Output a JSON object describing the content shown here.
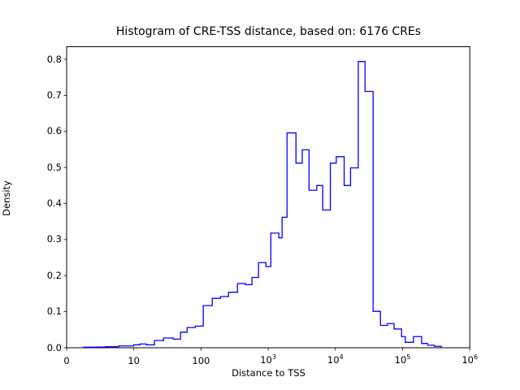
{
  "figure": {
    "background": "#ffffff"
  },
  "chart_data": {
    "type": "histogram_step",
    "title": "Histogram of CRE-TSS distance, based on: 6176 CREs",
    "xlabel": "Distance to TSS",
    "ylabel": "Density",
    "sample_count": 6176,
    "line_color": "#0000ff",
    "axis_color": "#000000",
    "x_scale": "symlog",
    "x_linthresh": 10,
    "xlim": [
      0,
      1000000
    ],
    "ylim": [
      0,
      0.835
    ],
    "grid": false,
    "legend": null,
    "xtick_values": [
      0,
      10,
      100,
      1000,
      10000,
      100000,
      1000000
    ],
    "xtick_labels": [
      "0",
      "10",
      "100",
      "10^3",
      "10^4",
      "10^5",
      "10^6"
    ],
    "ytick_values": [
      0.0,
      0.1,
      0.2,
      0.3,
      0.4,
      0.5,
      0.6,
      0.7,
      0.8
    ],
    "ytick_labels": [
      "0.0",
      "0.1",
      "0.2",
      "0.3",
      "0.4",
      "0.5",
      "0.6",
      "0.7",
      "0.8"
    ],
    "bin_edges": [
      2.55,
      4.24,
      5.82,
      7.76,
      10,
      12.3,
      15.4,
      20.3,
      27.7,
      38.6,
      49.6,
      62,
      82,
      108,
      147,
      194,
      257,
      349,
      459,
      573,
      718,
      925,
      1095,
      1440,
      1610,
      1905,
      2590,
      3210,
      4050,
      5270,
      6480,
      8410,
      10300,
      13500,
      16800,
      21900,
      27600,
      36400,
      46800,
      59600,
      74700,
      96500,
      110000,
      145000,
      192000,
      236000,
      297000,
      376000
    ],
    "densities": [
      0.0015,
      0.002,
      0.003,
      0.005,
      0.008,
      0.0105,
      0.008,
      0.02,
      0.027,
      0.024,
      0.043,
      0.056,
      0.06,
      0.117,
      0.137,
      0.142,
      0.154,
      0.178,
      0.175,
      0.195,
      0.236,
      0.225,
      0.318,
      0.305,
      0.362,
      0.596,
      0.512,
      0.549,
      0.437,
      0.45,
      0.382,
      0.512,
      0.53,
      0.45,
      0.499,
      0.794,
      0.711,
      0.101,
      0.062,
      0.067,
      0.052,
      0.031,
      0.0151,
      0.031,
      0.012,
      0.007,
      0.004
    ]
  }
}
